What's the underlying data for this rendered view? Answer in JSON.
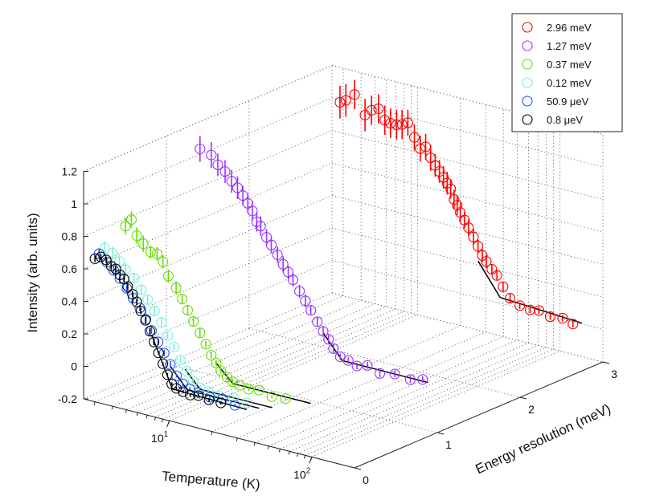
{
  "chart_data": {
    "type": "scatter",
    "projection": "3d",
    "xlabel": "Temperature (K)",
    "ylabel": "Energy resolution (meV)",
    "zlabel": "Intensity (arb. units)",
    "x_scale": "log",
    "x_ticks": [
      {
        "value": 10,
        "label": "10^1"
      },
      {
        "value": 100,
        "label": "10^2"
      }
    ],
    "y_ticks": [
      0,
      1,
      2,
      3
    ],
    "z_ticks": [
      -0.2,
      0,
      0.2,
      0.4,
      0.6,
      0.8,
      1,
      1.2
    ],
    "zlim": [
      -0.2,
      1.2
    ],
    "grid": true,
    "legend_position": "top-right",
    "series": [
      {
        "name": "2.96 meV",
        "color": "#ff0000",
        "energy_resolution": 2.96,
        "points": [
          {
            "T": 3.0,
            "I": 1.0,
            "err": 0.1
          },
          {
            "T": 3.3,
            "I": 1.02,
            "err": 0.1
          },
          {
            "T": 3.8,
            "I": 1.07,
            "err": 0.09
          },
          {
            "T": 4.5,
            "I": 0.96,
            "err": 0.1
          },
          {
            "T": 5.0,
            "I": 1.0,
            "err": 0.09
          },
          {
            "T": 5.6,
            "I": 1.02,
            "err": 0.09
          },
          {
            "T": 6.2,
            "I": 0.96,
            "err": 0.09
          },
          {
            "T": 6.8,
            "I": 0.95,
            "err": 0.09
          },
          {
            "T": 7.5,
            "I": 0.95,
            "err": 0.09
          },
          {
            "T": 8.2,
            "I": 0.96,
            "err": 0.09
          },
          {
            "T": 9.0,
            "I": 0.98,
            "err": 0.08
          },
          {
            "T": 10.0,
            "I": 0.9,
            "err": 0.08
          },
          {
            "T": 11.0,
            "I": 0.84,
            "err": 0.08
          },
          {
            "T": 12.0,
            "I": 0.86,
            "err": 0.08
          },
          {
            "T": 13.0,
            "I": 0.8,
            "err": 0.08
          },
          {
            "T": 14.0,
            "I": 0.76,
            "err": 0.07
          },
          {
            "T": 15.0,
            "I": 0.73,
            "err": 0.07
          },
          {
            "T": 16.0,
            "I": 0.7,
            "err": 0.07
          },
          {
            "T": 17.0,
            "I": 0.67,
            "err": 0.07
          },
          {
            "T": 18.0,
            "I": 0.64,
            "err": 0.06
          },
          {
            "T": 19.0,
            "I": 0.58,
            "err": 0.06
          },
          {
            "T": 20.0,
            "I": 0.55,
            "err": 0.06
          },
          {
            "T": 21.0,
            "I": 0.51,
            "err": 0.06
          },
          {
            "T": 22.5,
            "I": 0.47,
            "err": 0.05
          },
          {
            "T": 24.0,
            "I": 0.43,
            "err": 0.05
          },
          {
            "T": 26.0,
            "I": 0.38,
            "err": 0.05
          },
          {
            "T": 28.0,
            "I": 0.33,
            "err": 0.04
          },
          {
            "T": 30.0,
            "I": 0.28,
            "err": 0.04
          },
          {
            "T": 32.0,
            "I": 0.25,
            "err": 0.04
          },
          {
            "T": 35.0,
            "I": 0.21,
            "err": 0.03
          },
          {
            "T": 38.0,
            "I": 0.18,
            "err": 0.03
          },
          {
            "T": 42.0,
            "I": 0.12,
            "err": 0.03
          },
          {
            "T": 47.0,
            "I": 0.06,
            "err": 0.03
          },
          {
            "T": 55.0,
            "I": 0.03,
            "err": 0.02
          },
          {
            "T": 65.0,
            "I": 0.02,
            "err": 0.02
          },
          {
            "T": 75.0,
            "I": 0.03,
            "err": 0.02
          },
          {
            "T": 90.0,
            "I": 0.01,
            "err": 0.02
          },
          {
            "T": 110.0,
            "I": 0.02,
            "err": 0.02
          },
          {
            "T": 130.0,
            "I": 0.0,
            "err": 0.02
          }
        ],
        "fit": [
          {
            "T": 28.0,
            "I": 0.24
          },
          {
            "T": 40.0,
            "I": 0.05
          },
          {
            "T": 150.0,
            "I": 0.02
          }
        ]
      },
      {
        "name": "1.27 meV",
        "color": "#9933ff",
        "energy_resolution": 1.27,
        "points": [
          {
            "T": 3.0,
            "I": 1.08,
            "err": 0.08
          },
          {
            "T": 3.6,
            "I": 1.06,
            "err": 0.08
          },
          {
            "T": 4.0,
            "I": 1.01,
            "err": 0.07
          },
          {
            "T": 4.5,
            "I": 0.98,
            "err": 0.07
          },
          {
            "T": 5.0,
            "I": 0.93,
            "err": 0.07
          },
          {
            "T": 5.5,
            "I": 0.9,
            "err": 0.07
          },
          {
            "T": 6.0,
            "I": 0.86,
            "err": 0.06
          },
          {
            "T": 6.5,
            "I": 0.82,
            "err": 0.06
          },
          {
            "T": 7.0,
            "I": 0.78,
            "err": 0.06
          },
          {
            "T": 7.5,
            "I": 0.72,
            "err": 0.06
          },
          {
            "T": 8.0,
            "I": 0.7,
            "err": 0.06
          },
          {
            "T": 8.8,
            "I": 0.64,
            "err": 0.05
          },
          {
            "T": 9.5,
            "I": 0.6,
            "err": 0.05
          },
          {
            "T": 10.5,
            "I": 0.55,
            "err": 0.05
          },
          {
            "T": 11.5,
            "I": 0.5,
            "err": 0.05
          },
          {
            "T": 12.5,
            "I": 0.46,
            "err": 0.04
          },
          {
            "T": 13.5,
            "I": 0.42,
            "err": 0.04
          },
          {
            "T": 15.0,
            "I": 0.36,
            "err": 0.04
          },
          {
            "T": 16.5,
            "I": 0.31,
            "err": 0.04
          },
          {
            "T": 18.0,
            "I": 0.26,
            "err": 0.03
          },
          {
            "T": 20.0,
            "I": 0.2,
            "err": 0.03
          },
          {
            "T": 22.0,
            "I": 0.15,
            "err": 0.03
          },
          {
            "T": 24.0,
            "I": 0.11,
            "err": 0.03
          },
          {
            "T": 26.0,
            "I": 0.06,
            "err": 0.03
          },
          {
            "T": 29.0,
            "I": 0.02,
            "err": 0.02
          },
          {
            "T": 33.0,
            "I": 0.01,
            "err": 0.02
          },
          {
            "T": 38.0,
            "I": -0.01,
            "err": 0.02
          },
          {
            "T": 45.0,
            "I": 0.01,
            "err": 0.02
          },
          {
            "T": 55.0,
            "I": -0.02,
            "err": 0.02
          },
          {
            "T": 70.0,
            "I": 0.0,
            "err": 0.02
          },
          {
            "T": 90.0,
            "I": -0.01,
            "err": 0.02
          },
          {
            "T": 110.0,
            "I": 0.01,
            "err": 0.02
          }
        ],
        "fit": [
          {
            "T": 22.0,
            "I": 0.14
          },
          {
            "T": 30.0,
            "I": 0.0
          },
          {
            "T": 120.0,
            "I": 0.0
          }
        ]
      },
      {
        "name": "0.37 meV",
        "color": "#66dd00",
        "energy_resolution": 0.37,
        "points": [
          {
            "T": 3.0,
            "I": 0.8,
            "err": 0.05
          },
          {
            "T": 3.3,
            "I": 0.85,
            "err": 0.05
          },
          {
            "T": 3.6,
            "I": 0.76,
            "err": 0.05
          },
          {
            "T": 4.0,
            "I": 0.72,
            "err": 0.05
          },
          {
            "T": 4.5,
            "I": 0.68,
            "err": 0.04
          },
          {
            "T": 5.0,
            "I": 0.68,
            "err": 0.04
          },
          {
            "T": 5.5,
            "I": 0.64,
            "err": 0.04
          },
          {
            "T": 6.0,
            "I": 0.56,
            "err": 0.04
          },
          {
            "T": 6.8,
            "I": 0.5,
            "err": 0.04
          },
          {
            "T": 7.5,
            "I": 0.44,
            "err": 0.03
          },
          {
            "T": 8.2,
            "I": 0.38,
            "err": 0.03
          },
          {
            "T": 9.0,
            "I": 0.32,
            "err": 0.03
          },
          {
            "T": 10.0,
            "I": 0.26,
            "err": 0.03
          },
          {
            "T": 11.0,
            "I": 0.2,
            "err": 0.02
          },
          {
            "T": 12.0,
            "I": 0.14,
            "err": 0.02
          },
          {
            "T": 13.0,
            "I": 0.1,
            "err": 0.02
          },
          {
            "T": 14.0,
            "I": 0.06,
            "err": 0.02
          },
          {
            "T": 15.5,
            "I": 0.03,
            "err": 0.02
          },
          {
            "T": 17.0,
            "I": 0.01,
            "err": 0.02
          },
          {
            "T": 19.0,
            "I": 0.0,
            "err": 0.01
          },
          {
            "T": 22.0,
            "I": -0.01,
            "err": 0.01
          },
          {
            "T": 26.0,
            "I": 0.0,
            "err": 0.01
          },
          {
            "T": 32.0,
            "I": -0.02,
            "err": 0.01
          },
          {
            "T": 40.0,
            "I": -0.01,
            "err": 0.01
          }
        ],
        "fit": [
          {
            "T": 13.0,
            "I": 0.1
          },
          {
            "T": 17.0,
            "I": 0.0
          },
          {
            "T": 60.0,
            "I": 0.0
          }
        ]
      },
      {
        "name": "0.12 meV",
        "color": "#77eedd",
        "energy_resolution": 0.12,
        "points": [
          {
            "T": 3.0,
            "I": 0.72,
            "err": 0.04
          },
          {
            "T": 3.4,
            "I": 0.7,
            "err": 0.04
          },
          {
            "T": 3.8,
            "I": 0.66,
            "err": 0.04
          },
          {
            "T": 4.2,
            "I": 0.62,
            "err": 0.04
          },
          {
            "T": 4.8,
            "I": 0.58,
            "err": 0.03
          },
          {
            "T": 5.4,
            "I": 0.52,
            "err": 0.03
          },
          {
            "T": 6.0,
            "I": 0.47,
            "err": 0.03
          },
          {
            "T": 6.7,
            "I": 0.41,
            "err": 0.03
          },
          {
            "T": 7.5,
            "I": 0.35,
            "err": 0.03
          },
          {
            "T": 8.3,
            "I": 0.28,
            "err": 0.02
          },
          {
            "T": 9.2,
            "I": 0.22,
            "err": 0.02
          },
          {
            "T": 10.2,
            "I": 0.15,
            "err": 0.02
          },
          {
            "T": 11.3,
            "I": 0.09,
            "err": 0.02
          },
          {
            "T": 12.5,
            "I": 0.04,
            "err": 0.02
          },
          {
            "T": 14.0,
            "I": 0.01,
            "err": 0.01
          },
          {
            "T": 16.0,
            "I": 0.0,
            "err": 0.01
          },
          {
            "T": 19.0,
            "I": -0.01,
            "err": 0.01
          },
          {
            "T": 24.0,
            "I": 0.0,
            "err": 0.01
          },
          {
            "T": 30.0,
            "I": -0.01,
            "err": 0.01
          }
        ],
        "fit": [
          {
            "T": 11.0,
            "I": 0.1
          },
          {
            "T": 14.0,
            "I": 0.0
          },
          {
            "T": 45.0,
            "I": 0.0
          }
        ]
      },
      {
        "name": "50.9  μeV",
        "color": "#2255ee",
        "energy_resolution": 0.0509,
        "points": [
          {
            "T": 3.0,
            "I": 0.7,
            "err": 0.03
          },
          {
            "T": 3.4,
            "I": 0.66,
            "err": 0.03
          },
          {
            "T": 3.8,
            "I": 0.62,
            "err": 0.03
          },
          {
            "T": 4.2,
            "I": 0.58,
            "err": 0.03
          },
          {
            "T": 4.7,
            "I": 0.53,
            "err": 0.03
          },
          {
            "T": 5.2,
            "I": 0.48,
            "err": 0.03
          },
          {
            "T": 5.8,
            "I": 0.43,
            "err": 0.02
          },
          {
            "T": 6.4,
            "I": 0.37,
            "err": 0.02
          },
          {
            "T": 7.0,
            "I": 0.31,
            "err": 0.02
          },
          {
            "T": 7.8,
            "I": 0.25,
            "err": 0.02
          },
          {
            "T": 8.6,
            "I": 0.19,
            "err": 0.02
          },
          {
            "T": 9.5,
            "I": 0.13,
            "err": 0.02
          },
          {
            "T": 10.5,
            "I": 0.07,
            "err": 0.01
          },
          {
            "T": 11.6,
            "I": 0.03,
            "err": 0.01
          },
          {
            "T": 13.0,
            "I": 0.01,
            "err": 0.01
          },
          {
            "T": 15.0,
            "I": 0.0,
            "err": 0.01
          },
          {
            "T": 18.0,
            "I": -0.01,
            "err": 0.01
          },
          {
            "T": 22.0,
            "I": 0.0,
            "err": 0.01
          },
          {
            "T": 27.0,
            "I": -0.02,
            "err": 0.01
          }
        ],
        "fit": [
          {
            "T": 9.5,
            "I": 0.12
          },
          {
            "T": 12.5,
            "I": 0.0
          },
          {
            "T": 40.0,
            "I": 0.0
          }
        ]
      },
      {
        "name": "0.8  μeV",
        "color": "#000000",
        "energy_resolution": 0.0008,
        "points": [
          {
            "T": 3.0,
            "I": 0.68,
            "err": 0.02
          },
          {
            "T": 3.3,
            "I": 0.7,
            "err": 0.02
          },
          {
            "T": 3.6,
            "I": 0.69,
            "err": 0.02
          },
          {
            "T": 3.9,
            "I": 0.66,
            "err": 0.02
          },
          {
            "T": 4.2,
            "I": 0.65,
            "err": 0.02
          },
          {
            "T": 4.5,
            "I": 0.62,
            "err": 0.02
          },
          {
            "T": 4.8,
            "I": 0.6,
            "err": 0.02
          },
          {
            "T": 5.1,
            "I": 0.56,
            "err": 0.02
          },
          {
            "T": 5.5,
            "I": 0.52,
            "err": 0.02
          },
          {
            "T": 5.9,
            "I": 0.48,
            "err": 0.02
          },
          {
            "T": 6.3,
            "I": 0.43,
            "err": 0.02
          },
          {
            "T": 6.8,
            "I": 0.38,
            "err": 0.02
          },
          {
            "T": 7.3,
            "I": 0.32,
            "err": 0.02
          },
          {
            "T": 7.8,
            "I": 0.26,
            "err": 0.02
          },
          {
            "T": 8.4,
            "I": 0.2,
            "err": 0.01
          },
          {
            "T": 9.0,
            "I": 0.14,
            "err": 0.01
          },
          {
            "T": 9.7,
            "I": 0.08,
            "err": 0.01
          },
          {
            "T": 10.4,
            "I": 0.03,
            "err": 0.01
          },
          {
            "T": 11.2,
            "I": 0.01,
            "err": 0.01
          },
          {
            "T": 12.5,
            "I": 0.0,
            "err": 0.01
          },
          {
            "T": 14.0,
            "I": -0.01,
            "err": 0.01
          },
          {
            "T": 16.0,
            "I": 0.0,
            "err": 0.01
          },
          {
            "T": 19.0,
            "I": -0.01,
            "err": 0.01
          },
          {
            "T": 23.0,
            "I": -0.01,
            "err": 0.01
          }
        ],
        "fit": [
          {
            "T": 7.5,
            "I": 0.3
          },
          {
            "T": 10.5,
            "I": 0.0
          },
          {
            "T": 35.0,
            "I": -0.01
          }
        ]
      }
    ]
  }
}
